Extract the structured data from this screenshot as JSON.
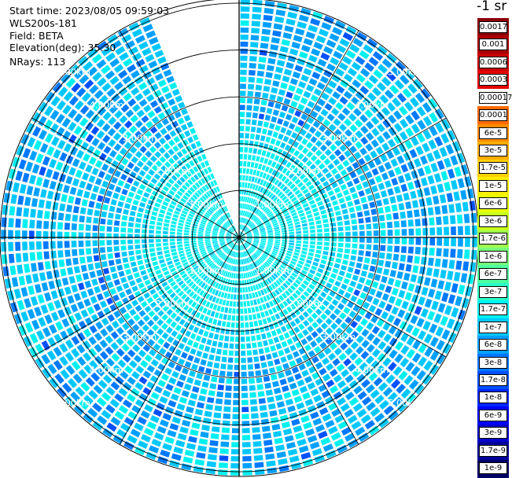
{
  "info": {
    "start_time": "Start time: 2023/08/05 09:59:03",
    "instrument": "WLS200s-181",
    "field": "Field: BETA",
    "elevation": "Elevation(deg): 35.30",
    "nrays": "NRays: 113"
  },
  "colorbar": {
    "title": "-1 sr",
    "labels": [
      "0.0017",
      "0.001",
      "0.0006",
      "0.0003",
      "0.00017",
      "0.0001",
      "6e-5",
      "3e-5",
      "1.7e-5",
      "1e-5",
      "6e-6",
      "3e-6",
      "1.7e-6",
      "1e-6",
      "6e-7",
      "3e-7",
      "1.7e-7",
      "1e-7",
      "6e-8",
      "3e-8",
      "1.7e-8",
      "1e-8",
      "6e-9",
      "3e-9",
      "1.7e-9",
      "1e-9"
    ],
    "colors": [
      "#8b0000",
      "#aa0000",
      "#c80000",
      "#e60000",
      "#ffffff",
      "#ff6a00",
      "#ff8c00",
      "#ffae00",
      "#ffcf00",
      "#ffee00",
      "#e6ff00",
      "#c8ff1e",
      "#a0ff50",
      "#78ff78",
      "#50ffa0",
      "#28ffc8",
      "#00f0f0",
      "#00c8ff",
      "#00a0ff",
      "#0078ff",
      "#0050ff",
      "#0028ff",
      "#0000ff",
      "#0000cc",
      "#000099",
      "#000066"
    ]
  },
  "chart_data": {
    "type": "heatmap",
    "projection": "polar (PPI scan)",
    "field": "BETA",
    "units": "sr-1",
    "elevation_deg": 35.3,
    "nrays": 113,
    "range_rings_km": [
      1.0,
      2.0,
      3.0,
      4.0,
      5.0
    ],
    "ring_labels": [
      "1.00km",
      "2.00km",
      "3.00km",
      "4.00km",
      "5.00km"
    ],
    "max_range_km": 5.1,
    "missing_sector_deg": [
      -22,
      0
    ],
    "dominant_value_range": [
      "3e-8",
      "1.7e-7"
    ],
    "near_range_value": "1.7e-7"
  }
}
